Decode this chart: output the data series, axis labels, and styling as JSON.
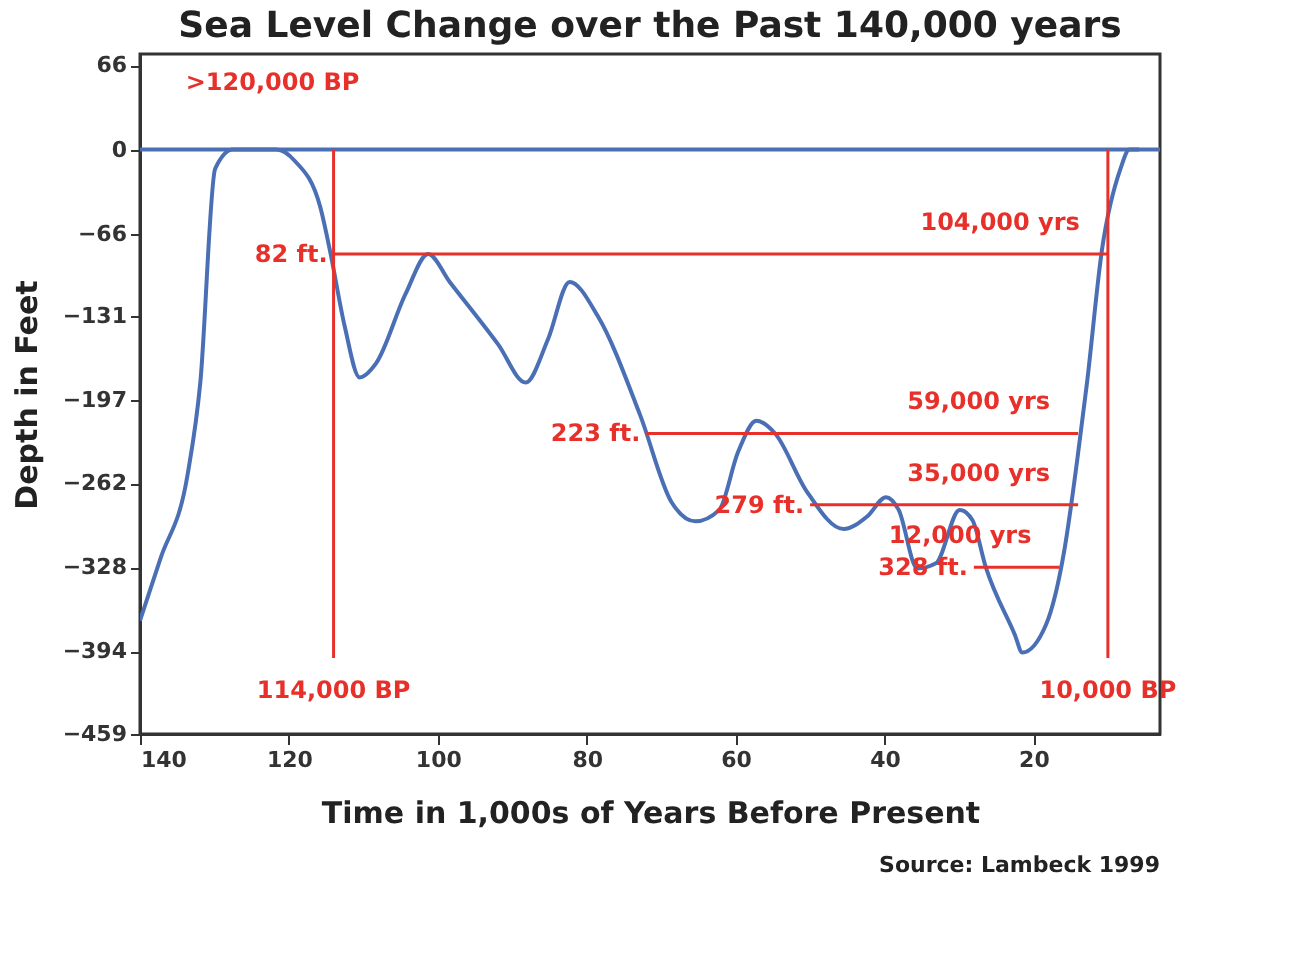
{
  "chart_data": {
    "type": "line",
    "title": "Sea Level Change over the Past 140,000 years",
    "xlabel": "Time in 1,000s of Years Before Present",
    "ylabel": "Depth in Feet",
    "xlim": [
      140,
      3
    ],
    "xticks": [
      140,
      120,
      100,
      80,
      60,
      40,
      20
    ],
    "ylim": [
      -459,
      75
    ],
    "yticks": [
      66,
      0,
      -66,
      -131,
      -197,
      -262,
      -328,
      -394,
      -459
    ],
    "grid": false,
    "line_style": "solid",
    "marker": "none",
    "series": [
      {
        "color": "#4a6fb5",
        "x": [
          140,
          137.3,
          133.6,
          131.9,
          129.9,
          127.5,
          124.2,
          121.7,
          119.2,
          115.8,
          114.5,
          112.5,
          110.5,
          108.3,
          104.3,
          101.3,
          98.4,
          91.9,
          88.2,
          85.2,
          82.3,
          78.5,
          72.8,
          68.6,
          65.4,
          62.2,
          59.7,
          57.2,
          54.7,
          50.5,
          45.5,
          42.3,
          39.8,
          38.1,
          35.6,
          33.1,
          29.9,
          28.2,
          26.4,
          22.5,
          21.5,
          18.3,
          15.8,
          14.1,
          12.8,
          10.8,
          8.3,
          7.1,
          5.8
        ],
        "values": [
          -370,
          -322,
          -255,
          -183,
          -15,
          0,
          0,
          0,
          -9,
          -45,
          -79,
          -139,
          -179,
          -168,
          -113,
          -82,
          -104,
          -153,
          -183,
          -149,
          -104,
          -131,
          -209,
          -277,
          -292,
          -283,
          -238,
          -213,
          -223,
          -268,
          -298,
          -288,
          -273,
          -283,
          -329,
          -325,
          -283,
          -291,
          -328,
          -381,
          -395,
          -373,
          -313,
          -243,
          -183,
          -79,
          -15,
          0,
          0
        ]
      },
      {
        "color": "#e8302a",
        "x": [
          114,
          10
        ],
        "values": [
          -82,
          -82
        ]
      },
      {
        "color": "#e8302a",
        "x": [
          72,
          14
        ],
        "values": [
          -223,
          -223
        ]
      },
      {
        "color": "#e8302a",
        "x": [
          50,
          14
        ],
        "values": [
          -279,
          -279
        ]
      },
      {
        "color": "#e8302a",
        "x": [
          28,
          16.5
        ],
        "values": [
          -328,
          -328
        ]
      }
    ],
    "ref_lines": [
      {
        "axis": "y",
        "value": 0,
        "color": "#4a6fb5"
      },
      {
        "axis": "x",
        "value": 114,
        "label": "114,000 BP",
        "color": "#e8302a"
      },
      {
        "axis": "x",
        "value": 10,
        "label": "10,000 BP",
        "color": "#e8302a"
      }
    ],
    "annotations": [
      ">120,000 BP",
      {
        "text": "82 ft.",
        "x": 114,
        "y": -82
      },
      {
        "text": "104,000 yrs",
        "x": 10,
        "y": -82
      },
      {
        "text": "223 ft.",
        "x": 72,
        "y": -223
      },
      {
        "text": "59,000 yrs",
        "x": 14,
        "y": -223
      },
      {
        "text": "279 ft.",
        "x": 50,
        "y": -279
      },
      {
        "text": "35,000 yrs",
        "x": 14,
        "y": -279
      },
      {
        "text": "328 ft.",
        "x": 28,
        "y": -328
      },
      {
        "text": "12,000 yrs",
        "x": 16.5,
        "y": -328
      },
      "Source: Lambeck 1999"
    ]
  }
}
